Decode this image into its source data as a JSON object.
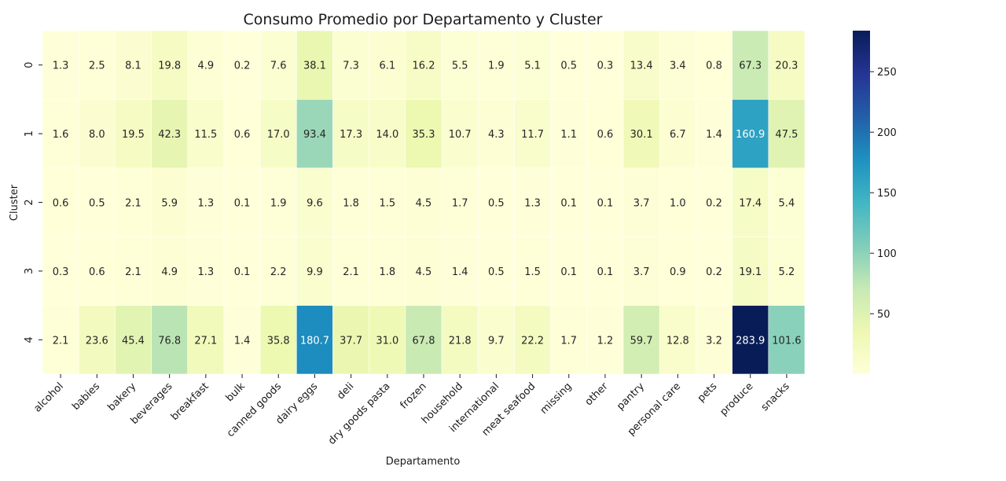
{
  "chart_data": {
    "type": "heatmap",
    "title": "Consumo Promedio por Departamento y Cluster",
    "xlabel": "Departamento",
    "ylabel": "Cluster",
    "x_categories": [
      "alcohol",
      "babies",
      "bakery",
      "beverages",
      "breakfast",
      "bulk",
      "canned goods",
      "dairy eggs",
      "deli",
      "dry goods pasta",
      "frozen",
      "household",
      "international",
      "meat seafood",
      "missing",
      "other",
      "pantry",
      "personal care",
      "pets",
      "produce",
      "snacks"
    ],
    "y_categories": [
      "0",
      "1",
      "2",
      "3",
      "4"
    ],
    "values": [
      [
        1.3,
        2.5,
        8.1,
        19.8,
        4.9,
        0.2,
        7.6,
        38.1,
        7.3,
        6.1,
        16.2,
        5.5,
        1.9,
        5.1,
        0.5,
        0.3,
        13.4,
        3.4,
        0.8,
        67.3,
        20.3
      ],
      [
        1.6,
        8.0,
        19.5,
        42.3,
        11.5,
        0.6,
        17.0,
        93.4,
        17.3,
        14.0,
        35.3,
        10.7,
        4.3,
        11.7,
        1.1,
        0.6,
        30.1,
        6.7,
        1.4,
        160.9,
        47.5
      ],
      [
        0.6,
        0.5,
        2.1,
        5.9,
        1.3,
        0.1,
        1.9,
        9.6,
        1.8,
        1.5,
        4.5,
        1.7,
        0.5,
        1.3,
        0.1,
        0.1,
        3.7,
        1.0,
        0.2,
        17.4,
        5.4
      ],
      [
        0.3,
        0.6,
        2.1,
        4.9,
        1.3,
        0.1,
        2.2,
        9.9,
        2.1,
        1.8,
        4.5,
        1.4,
        0.5,
        1.5,
        0.1,
        0.1,
        3.7,
        0.9,
        0.2,
        19.1,
        5.2
      ],
      [
        2.1,
        23.6,
        45.4,
        76.8,
        27.1,
        1.4,
        35.8,
        180.7,
        37.7,
        31.0,
        67.8,
        21.8,
        9.7,
        22.2,
        1.7,
        1.2,
        59.7,
        12.8,
        3.2,
        283.9,
        101.6
      ]
    ],
    "colormap": "YlGnBu",
    "colormap_stops": [
      "#ffffd9",
      "#edf8b1",
      "#c7e9b4",
      "#7fcdbb",
      "#41b6c4",
      "#1d91c0",
      "#225ea8",
      "#253494",
      "#081d58"
    ],
    "value_range": [
      0.1,
      283.9
    ],
    "colorbar_ticks": [
      50,
      100,
      150,
      200,
      250
    ],
    "annotation_colors": {
      "dark": "#262626",
      "light": "#ffffff"
    }
  }
}
